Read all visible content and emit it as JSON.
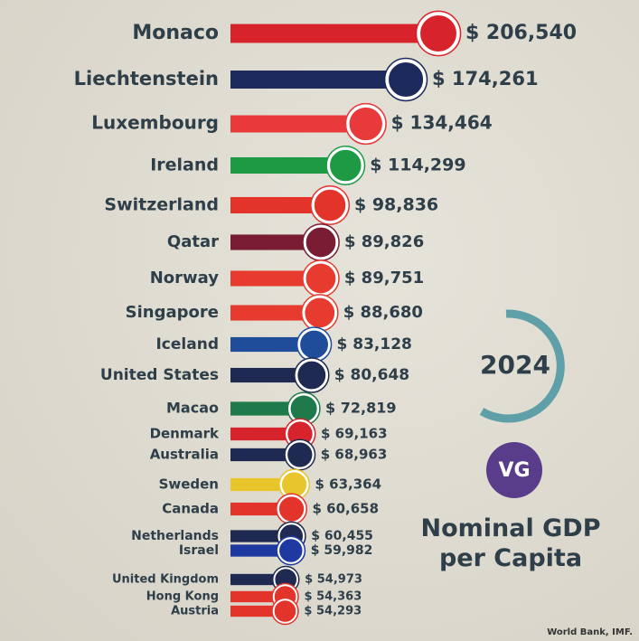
{
  "chart_data": {
    "type": "bar",
    "orientation": "horizontal",
    "title": "Nominal GDP per Capita",
    "year": "2024",
    "logo": "VG",
    "source": "World Bank, IMF.",
    "categories": [
      "Monaco",
      "Liechtenstein",
      "Luxembourg",
      "Ireland",
      "Switzerland",
      "Qatar",
      "Norway",
      "Singapore",
      "Iceland",
      "United States",
      "Macao",
      "Denmark",
      "Australia",
      "Sweden",
      "Canada",
      "Netherlands",
      "Israel",
      "United Kingdom",
      "Hong Kong",
      "Austria"
    ],
    "values": [
      206540,
      174261,
      134464,
      114299,
      98836,
      89826,
      89751,
      88680,
      83128,
      80648,
      72819,
      69163,
      68963,
      63364,
      60658,
      60455,
      59982,
      54973,
      54363,
      54293
    ],
    "value_labels": [
      "$ 206,540",
      "$ 174,261",
      "$ 134,464",
      "$ 114,299",
      "$ 98,836",
      "$ 89,826",
      "$ 89,751",
      "$ 88,680",
      "$ 83,128",
      "$ 80,648",
      "$ 72,819",
      "$ 69,163",
      "$ 68,963",
      "$ 63,364",
      "$ 60,658",
      "$ 60,455",
      "$ 59,982",
      "$ 54,973",
      "$ 54,363",
      "$ 54,293"
    ],
    "colors": [
      "#d7232b",
      "#1d2a5c",
      "#e8393b",
      "#1e9a45",
      "#e3342c",
      "#7a1d34",
      "#e63b2e",
      "#e63b2e",
      "#1f4d9a",
      "#1f2a52",
      "#1e7a4a",
      "#d7232b",
      "#1f2a52",
      "#e8c52a",
      "#e3342c",
      "#1f2a52",
      "#1e3aa0",
      "#1f2a52",
      "#e3342c",
      "#e3342c"
    ]
  }
}
